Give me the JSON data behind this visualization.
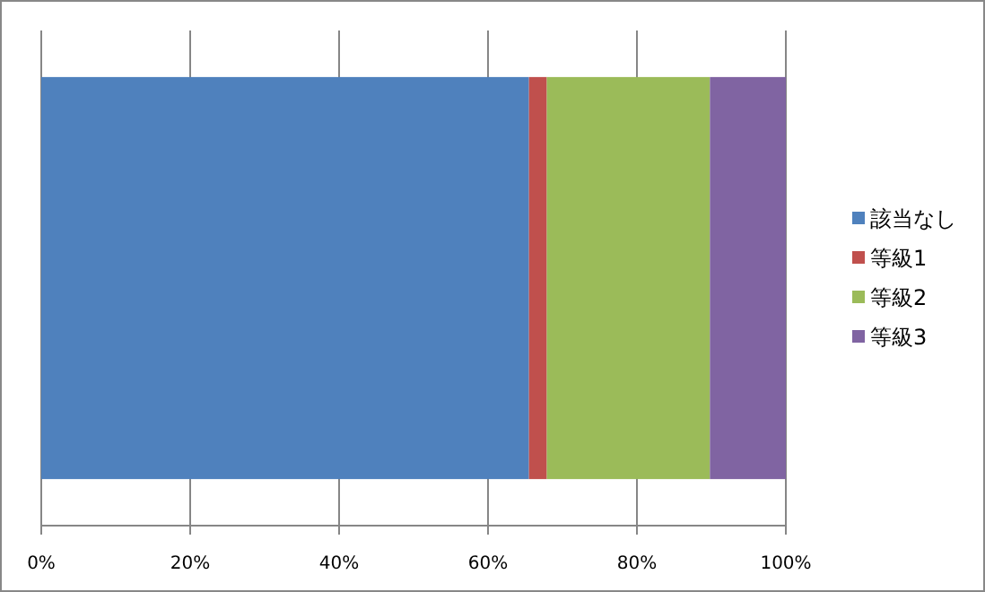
{
  "chart_data": {
    "type": "bar",
    "orientation": "horizontal",
    "stacked": true,
    "categories": [
      null
    ],
    "series": [
      {
        "name": "該当なし",
        "color": "#4f81bd",
        "values": [
          65.5
        ]
      },
      {
        "name": "等級1",
        "color": "#c0504d",
        "values": [
          2.4
        ]
      },
      {
        "name": "等級2",
        "color": "#9bbb59",
        "values": [
          21.9
        ]
      },
      {
        "name": "等級3",
        "color": "#8064a2",
        "values": [
          10.2
        ]
      }
    ],
    "xlim": [
      0,
      100
    ],
    "xticks": [
      {
        "value": 0,
        "label": "0%"
      },
      {
        "value": 20,
        "label": "20%"
      },
      {
        "value": 40,
        "label": "40%"
      },
      {
        "value": 60,
        "label": "60%"
      },
      {
        "value": 80,
        "label": "80%"
      },
      {
        "value": 100,
        "label": "100%"
      }
    ],
    "grid": "x",
    "legend": "right"
  }
}
